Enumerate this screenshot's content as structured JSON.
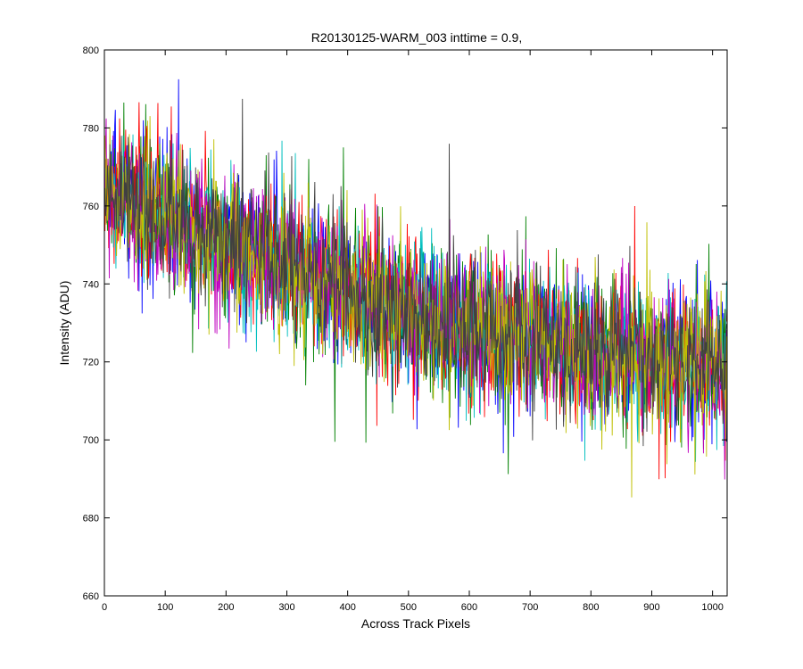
{
  "chart_data": {
    "type": "line",
    "title": "R20130125-WARM_003 inttime = 0.9,",
    "xlabel": "Across Track Pixels",
    "ylabel": "Intensity (ADU)",
    "xlim": [
      0,
      1024
    ],
    "ylim": [
      660,
      800
    ],
    "xticks": [
      "0",
      "100",
      "200",
      "300",
      "400",
      "500",
      "600",
      "700",
      "800",
      "900",
      "1000"
    ],
    "yticks": [
      "660",
      "680",
      "700",
      "720",
      "740",
      "760",
      "780",
      "800"
    ],
    "grid": false,
    "legend": "none",
    "trend_x": [
      0,
      100,
      200,
      300,
      400,
      500,
      600,
      700,
      800,
      900,
      1024
    ],
    "trend_y": [
      765,
      757,
      750,
      744,
      738,
      733,
      729,
      726,
      723,
      721,
      720
    ],
    "noise_amplitude": 9,
    "series": [
      {
        "color": "#0000ff"
      },
      {
        "color": "#008000"
      },
      {
        "color": "#ff0000"
      },
      {
        "color": "#00bfbf"
      },
      {
        "color": "#bf00bf"
      },
      {
        "color": "#bfbf00"
      },
      {
        "color": "#404040"
      }
    ]
  }
}
